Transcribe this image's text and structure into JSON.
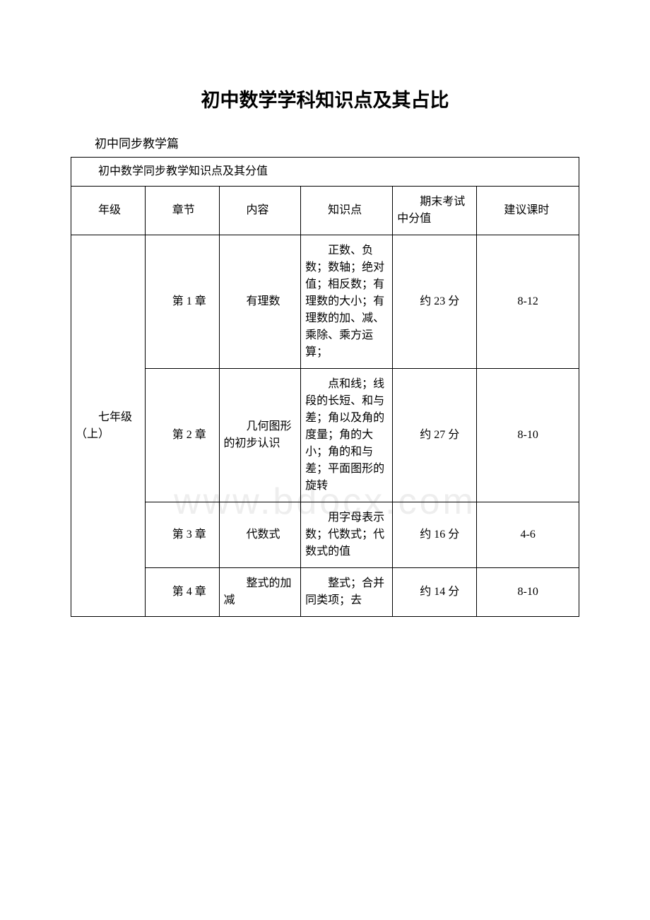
{
  "title": "初中数学学科知识点及其占比",
  "subtitle": "初中同步教学篇",
  "watermark": "www.bdocx.com",
  "table": {
    "caption": "初中数学同步教学知识点及其分值",
    "headers": [
      "年级",
      "章节",
      "内容",
      "知识点",
      "期末考试中分值",
      "建议课时"
    ],
    "grade": "七年级（上）",
    "rows": [
      {
        "chapter": "第 1 章",
        "content": "有理数",
        "knowledge": "正数、负数；数轴；绝对值；相反数；有理数的大小；有理数的加、减、乘除、乘方运算；",
        "score": "约 23 分",
        "hours": "8-12"
      },
      {
        "chapter": "第 2 章",
        "content": "几何图形的初步认识",
        "knowledge": "点和线；线段的长短、和与差；角以及角的度量；角的大小；角的和与差；平面图形的旋转",
        "score": "约 27 分",
        "hours": "8-10"
      },
      {
        "chapter": "第 3 章",
        "content": "代数式",
        "knowledge": "用字母表示数；代数式；代数式的值",
        "score": "约 16 分",
        "hours": "4-6"
      },
      {
        "chapter": "第 4 章",
        "content": "整式的加减",
        "knowledge": "整式；合并同类项；去",
        "score": "约 14 分",
        "hours": "8-10"
      }
    ]
  }
}
